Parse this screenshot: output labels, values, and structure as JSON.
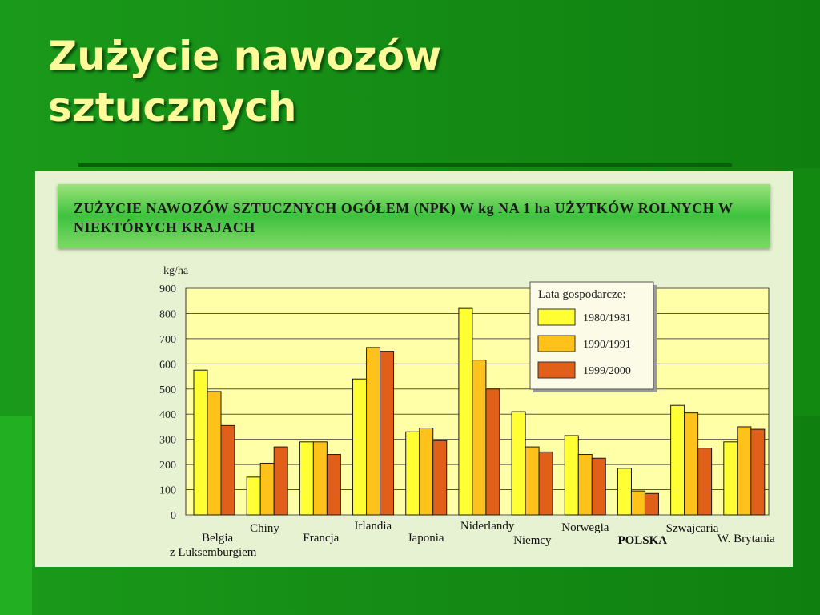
{
  "slide": {
    "title_line1": "Zużycie nawozów",
    "title_line2": "sztucznych"
  },
  "colors": {
    "series": [
      "#ffff33",
      "#ffc21a",
      "#e0601a"
    ],
    "plot_bg": "#ffffa8",
    "panel_bg": "#e6f2d2"
  },
  "chart_data": {
    "type": "bar",
    "title": "ZUŻYCIE NAWOZÓW SZTUCZNYCH OGÓŁEM (NPK) W kg NA 1 ha UŻYTKÓW ROLNYCH W NIEKTÓRYCH KRAJACH",
    "ylabel": "kg/ha",
    "ylim": [
      0,
      900
    ],
    "yticks": [
      0,
      100,
      200,
      300,
      400,
      500,
      600,
      700,
      800,
      900
    ],
    "grid": true,
    "legend_title": "Lata gospodarcze:",
    "legend_position": "top-right",
    "categories": [
      "Belgia z Luksemburgiem",
      "Chiny",
      "Francja",
      "Irlandia",
      "Japonia",
      "Niderlandy",
      "Niemcy",
      "Norwegia",
      "POLSKA",
      "Szwajcaria",
      "W. Brytania"
    ],
    "category_labels": [
      [
        "Belgia",
        "z Luksemburgiem"
      ],
      [
        "Chiny"
      ],
      [
        "Francja"
      ],
      [
        "Irlandia"
      ],
      [
        "Japonia"
      ],
      [
        "Niderlandy"
      ],
      [
        "Niemcy"
      ],
      [
        "Norwegia"
      ],
      [
        "POLSKA"
      ],
      [
        "Szwajcaria"
      ],
      [
        "W. Brytania"
      ]
    ],
    "series": [
      {
        "name": "1980/1981",
        "values": [
          575,
          150,
          290,
          540,
          330,
          820,
          410,
          315,
          185,
          435,
          290
        ]
      },
      {
        "name": "1990/1991",
        "values": [
          490,
          205,
          290,
          665,
          345,
          615,
          270,
          240,
          95,
          405,
          350
        ]
      },
      {
        "name": "1999/2000",
        "values": [
          355,
          270,
          240,
          650,
          295,
          500,
          250,
          225,
          85,
          265,
          340
        ]
      }
    ]
  }
}
